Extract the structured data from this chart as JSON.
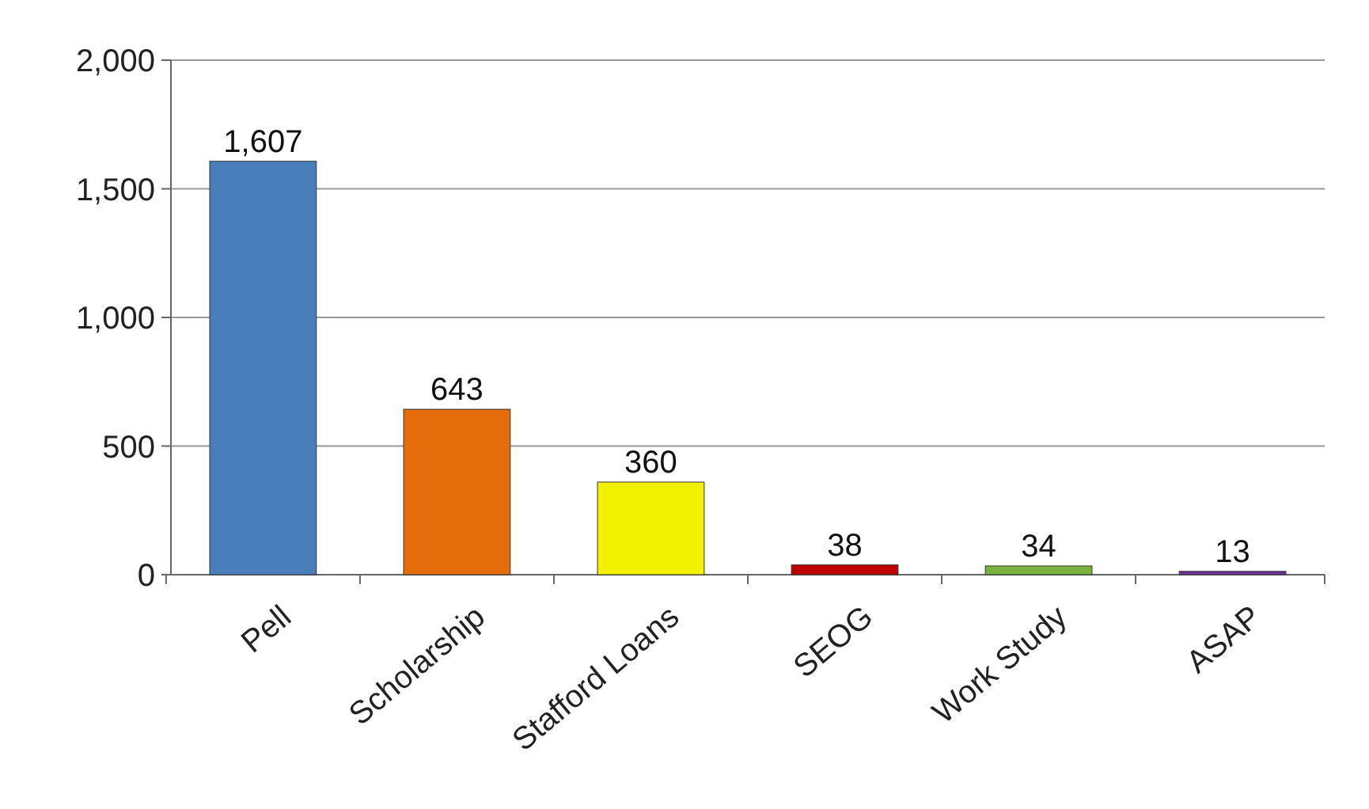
{
  "chart_data": {
    "type": "bar",
    "categories": [
      "Pell",
      "Scholarship",
      "Stafford Loans",
      "SEOG",
      "Work Study",
      "ASAP"
    ],
    "values": [
      1607,
      643,
      360,
      38,
      34,
      13
    ],
    "colors": [
      "#4a7ebb",
      "#e46c0a",
      "#f2f200",
      "#c00000",
      "#77b33e",
      "#7030a0"
    ],
    "value_labels": [
      "1,607",
      "643",
      "360",
      "38",
      "34",
      "13"
    ],
    "ylim": [
      0,
      2000
    ],
    "yticks": [
      {
        "value": 0,
        "label": "0"
      },
      {
        "value": 500,
        "label": "500"
      },
      {
        "value": 1000,
        "label": "1,000"
      },
      {
        "value": 1500,
        "label": "1,500"
      },
      {
        "value": 2000,
        "label": "2,000"
      }
    ],
    "grid": "y"
  }
}
